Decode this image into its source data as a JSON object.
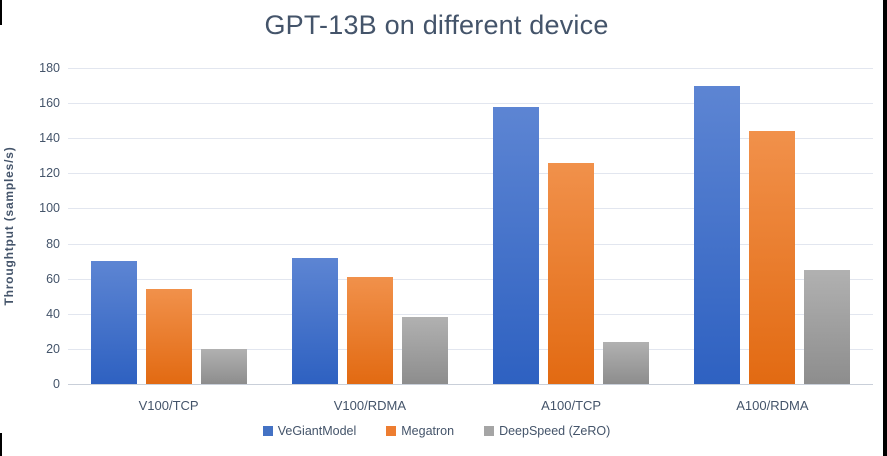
{
  "chart_data": {
    "type": "bar",
    "title": "GPT-13B on different device",
    "ylabel": "Throughtput (samples/s)",
    "xlabel": "",
    "categories": [
      "V100/TCP",
      "V100/RDMA",
      "A100/TCP",
      "A100/RDMA"
    ],
    "series": [
      {
        "name": "VeGiantModel",
        "values": [
          70,
          72,
          158,
          170
        ],
        "color": "#4472C4",
        "gradient": [
          "#5d85d3",
          "#2e61c1"
        ]
      },
      {
        "name": "Megatron",
        "values": [
          54,
          61,
          126,
          144
        ],
        "color": "#ED7D31",
        "gradient": [
          "#f1914b",
          "#e26a12"
        ]
      },
      {
        "name": "DeepSpeed (ZeRO)",
        "values": [
          20,
          38,
          24,
          65
        ],
        "color": "#A5A5A5",
        "gradient": [
          "#b1b1b1",
          "#8d8d8d"
        ]
      }
    ],
    "ylim": [
      0,
      180
    ],
    "ytick_step": 20,
    "yticks": [
      0,
      20,
      40,
      60,
      80,
      100,
      120,
      140,
      160,
      180
    ],
    "grid": true,
    "legend_position": "bottom"
  },
  "styles": {
    "title_color": "#44546A",
    "axis_text_color": "#44546A",
    "gridline_color": "#E2E6EF",
    "axis_line_color": "#C9CFD9",
    "edge_artifact_color": "#000000"
  }
}
